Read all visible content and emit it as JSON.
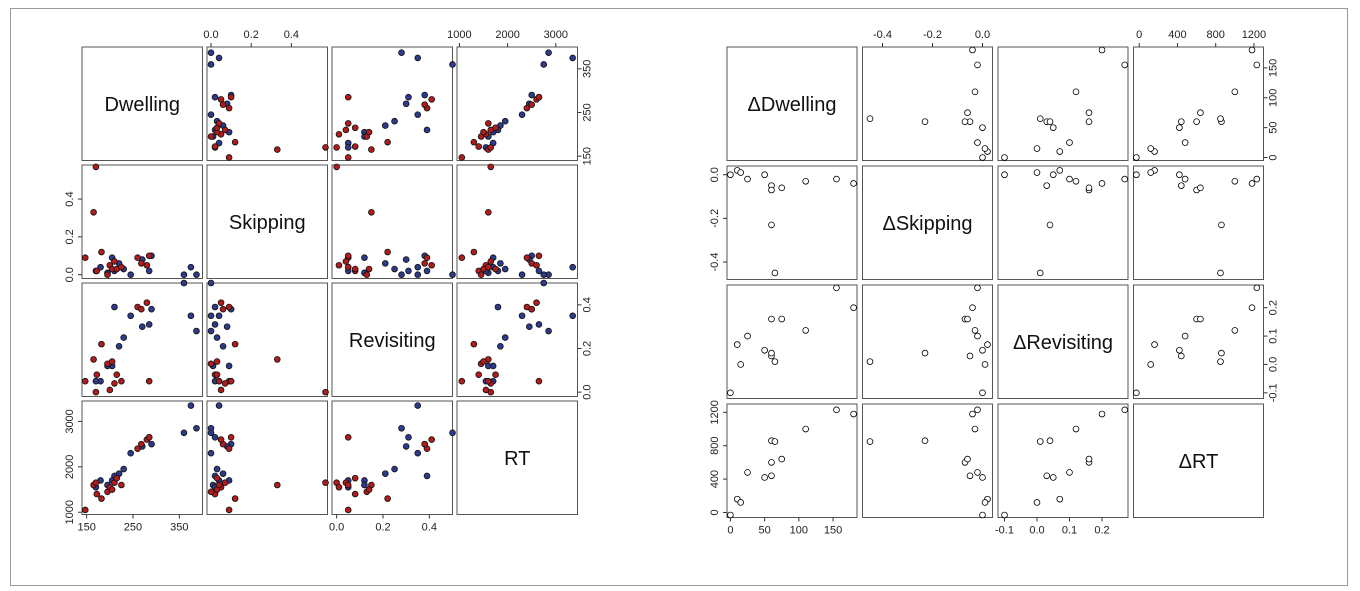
{
  "colors": {
    "group_a": "#2e3a8c",
    "group_b": "#b01c1c",
    "open_point": "#000000",
    "panel_border": "#555555",
    "frame_border": "#9a9a9a"
  },
  "chart_data": [
    {
      "type": "scatter",
      "kind": "scatterplot-matrix",
      "grouped": true,
      "variables": [
        {
          "label": "Dwelling",
          "range": [
            140,
            400
          ],
          "ticks": [
            150,
            250,
            350
          ],
          "tick_labels": [
            "150",
            "250",
            "350"
          ]
        },
        {
          "label": "Skipping",
          "range": [
            -0.02,
            0.58
          ],
          "ticks": [
            0,
            0.2,
            0.4
          ],
          "tick_labels": [
            "0.0",
            "0.2",
            "0.4"
          ]
        },
        {
          "label": "Revisiting",
          "range": [
            -0.02,
            0.5
          ],
          "ticks": [
            0,
            0.2,
            0.4
          ],
          "tick_labels": [
            "0.0",
            "0.2",
            "0.4"
          ]
        },
        {
          "label": "RT",
          "range": [
            950,
            3450
          ],
          "ticks": [
            1000,
            2000,
            3000
          ],
          "tick_labels": [
            "1000",
            "2000",
            "3000"
          ]
        }
      ],
      "groups": [
        {
          "color": "#2e3a8c",
          "points": [
            [
              387,
              0.0,
              0.28,
              2850
            ],
            [
              375,
              0.04,
              0.35,
              3350
            ],
            [
              360,
              0.0,
              0.5,
              2750
            ],
            [
              285,
              0.02,
              0.31,
              2650
            ],
            [
              290,
              0.1,
              0.38,
              2500
            ],
            [
              270,
              0.08,
              0.3,
              2450
            ],
            [
              245,
              0.0,
              0.35,
              2300
            ],
            [
              230,
              0.03,
              0.25,
              1950
            ],
            [
              220,
              0.06,
              0.21,
              1850
            ],
            [
              210,
              0.02,
              0.39,
              1800
            ],
            [
              205,
              0.09,
              0.12,
              1700
            ],
            [
              195,
              0.01,
              0.12,
              1600
            ],
            [
              180,
              0.04,
              0.05,
              1700
            ],
            [
              170,
              0.02,
              0.05,
              1550
            ]
          ]
        },
        {
          "color": "#b01c1c",
          "points": [
            [
              147,
              0.09,
              0.05,
              1050
            ],
            [
              165,
              0.33,
              0.15,
              1600
            ],
            [
              170,
              0.57,
              0.0,
              1650
            ],
            [
              172,
              0.02,
              0.08,
              1400
            ],
            [
              182,
              0.12,
              0.22,
              1300
            ],
            [
              195,
              0.0,
              0.13,
              1450
            ],
            [
              200,
              0.05,
              0.01,
              1550
            ],
            [
              205,
              0.03,
              0.14,
              1500
            ],
            [
              210,
              0.07,
              0.04,
              1650
            ],
            [
              215,
              0.03,
              0.08,
              1750
            ],
            [
              225,
              0.04,
              0.05,
              1600
            ],
            [
              260,
              0.09,
              0.39,
              2400
            ],
            [
              268,
              0.06,
              0.38,
              2500
            ],
            [
              280,
              0.05,
              0.41,
              2600
            ],
            [
              285,
              0.1,
              0.05,
              2650
            ]
          ]
        }
      ]
    },
    {
      "type": "scatter",
      "kind": "scatterplot-matrix",
      "grouped": false,
      "variables": [
        {
          "label": "ΔDwelling",
          "range": [
            -5,
            185
          ],
          "ticks": [
            0,
            50,
            100,
            150
          ],
          "tick_labels": [
            "0",
            "50",
            "100",
            "150"
          ]
        },
        {
          "label": "ΔSkipping",
          "range": [
            -0.48,
            0.04
          ],
          "ticks": [
            -0.4,
            -0.2,
            0.0
          ],
          "tick_labels": [
            "-0.4",
            "-0.2",
            "0.0"
          ]
        },
        {
          "label": "ΔRevisiting",
          "range": [
            -0.12,
            0.28
          ],
          "ticks": [
            -0.1,
            0.0,
            0.1,
            0.2
          ],
          "tick_labels": [
            "-0.1",
            "0.0",
            "0.1",
            "0.2"
          ]
        },
        {
          "label": "ΔRT",
          "range": [
            -60,
            1300
          ],
          "ticks": [
            0,
            400,
            800,
            1200
          ],
          "tick_labels": [
            "0",
            "400",
            "800",
            "1200"
          ]
        }
      ],
      "points": [
        [
          0,
          0.0,
          -0.1,
          -30
        ],
        [
          10,
          0.02,
          0.07,
          160
        ],
        [
          15,
          0.01,
          0.0,
          120
        ],
        [
          25,
          -0.02,
          0.1,
          480
        ],
        [
          50,
          0.0,
          0.05,
          420
        ],
        [
          60,
          -0.05,
          0.03,
          440
        ],
        [
          60,
          -0.07,
          0.16,
          600
        ],
        [
          60,
          -0.23,
          0.04,
          860
        ],
        [
          65,
          -0.45,
          0.01,
          850
        ],
        [
          75,
          -0.06,
          0.16,
          640
        ],
        [
          110,
          -0.03,
          0.12,
          1000
        ],
        [
          155,
          -0.02,
          0.27,
          1230
        ],
        [
          180,
          -0.04,
          0.2,
          1180
        ]
      ]
    }
  ]
}
